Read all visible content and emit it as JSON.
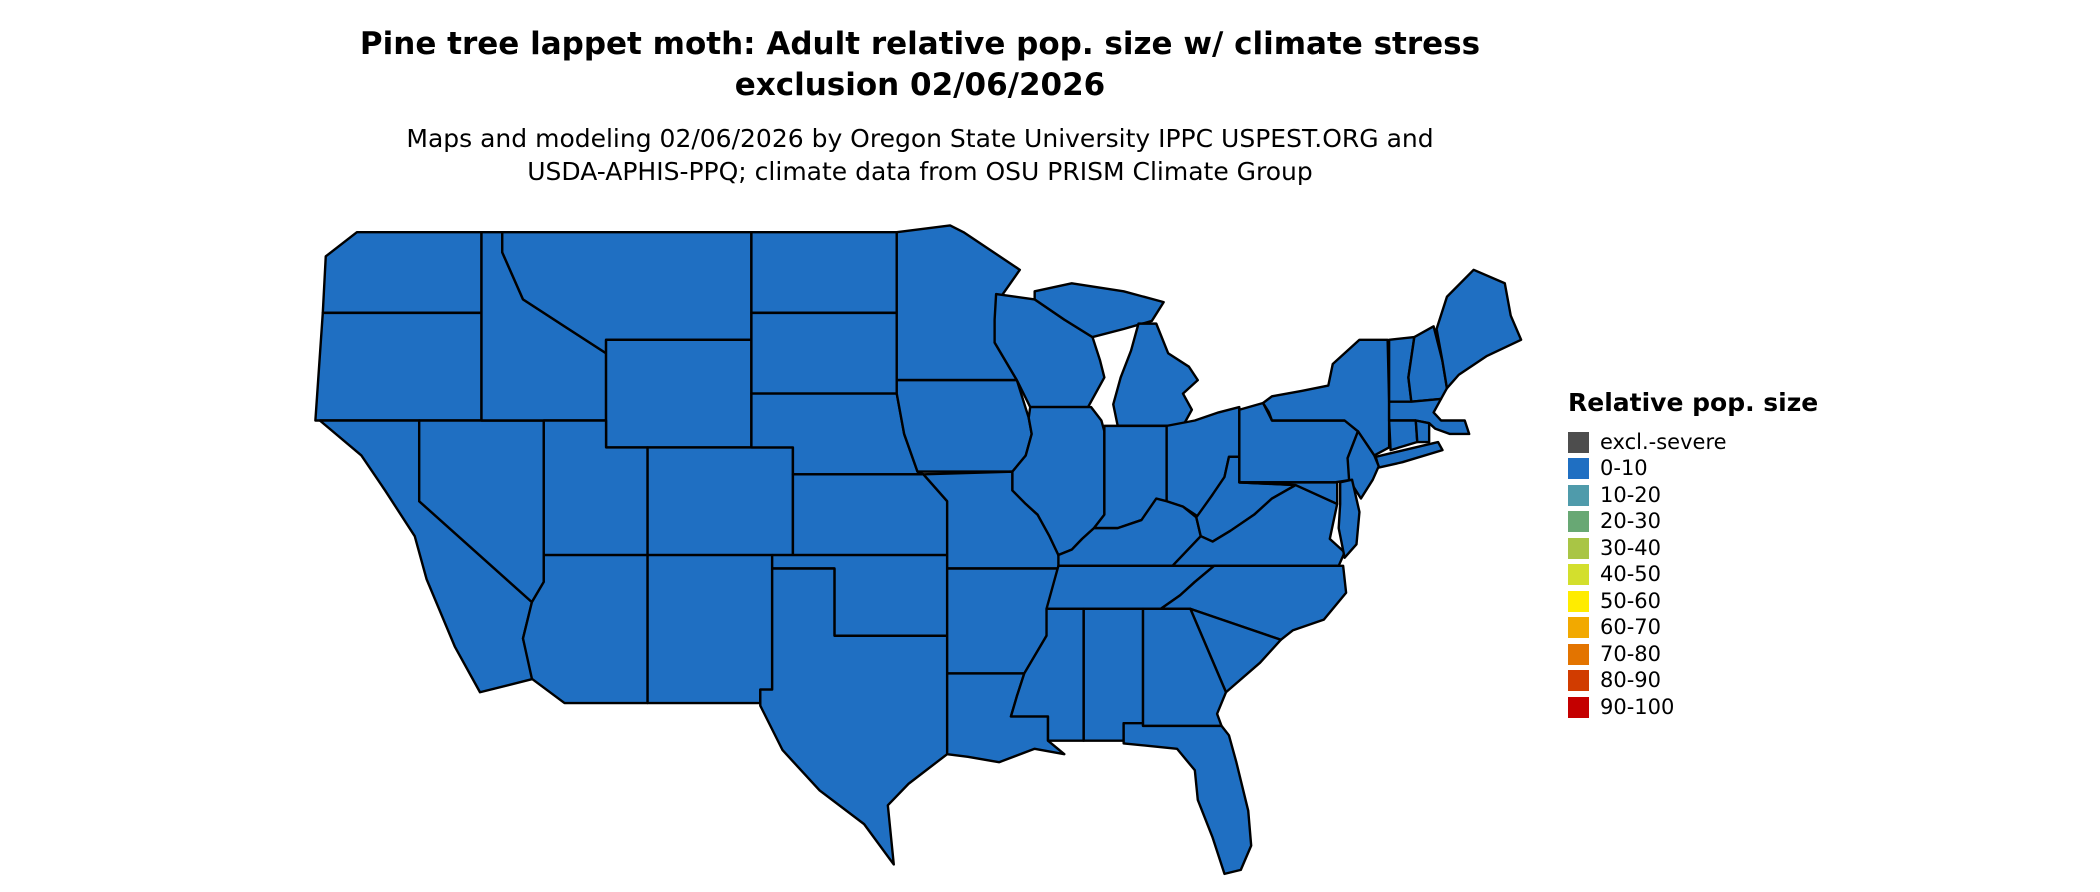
{
  "title": {
    "line1": "Pine tree lappet moth: Adult relative pop. size w/ climate stress",
    "line2": "exclusion 02/06/2026"
  },
  "subtitle": {
    "line1": "Maps and modeling 02/06/2026 by Oregon State University IPPC USPEST.ORG and",
    "line2": "USDA-APHIS-PPQ; climate data from OSU PRISM Climate Group"
  },
  "legend": {
    "title": "Relative pop. size",
    "items": [
      {
        "label": "excl.-severe",
        "color": "#4d4d4d"
      },
      {
        "label": "0-10",
        "color": "#1f6fc2"
      },
      {
        "label": "10-20",
        "color": "#4f9bab"
      },
      {
        "label": "20-30",
        "color": "#68a874"
      },
      {
        "label": "30-40",
        "color": "#a9c545"
      },
      {
        "label": "40-50",
        "color": "#d3df2d"
      },
      {
        "label": "50-60",
        "color": "#ffec00"
      },
      {
        "label": "60-70",
        "color": "#f2a900"
      },
      {
        "label": "70-80",
        "color": "#e37400"
      },
      {
        "label": "80-90",
        "color": "#d13c00"
      },
      {
        "label": "90-100",
        "color": "#c40000"
      }
    ]
  },
  "map": {
    "fill_category": "0-10",
    "fill_color": "#1f6fc2",
    "border_color": "#000000"
  }
}
